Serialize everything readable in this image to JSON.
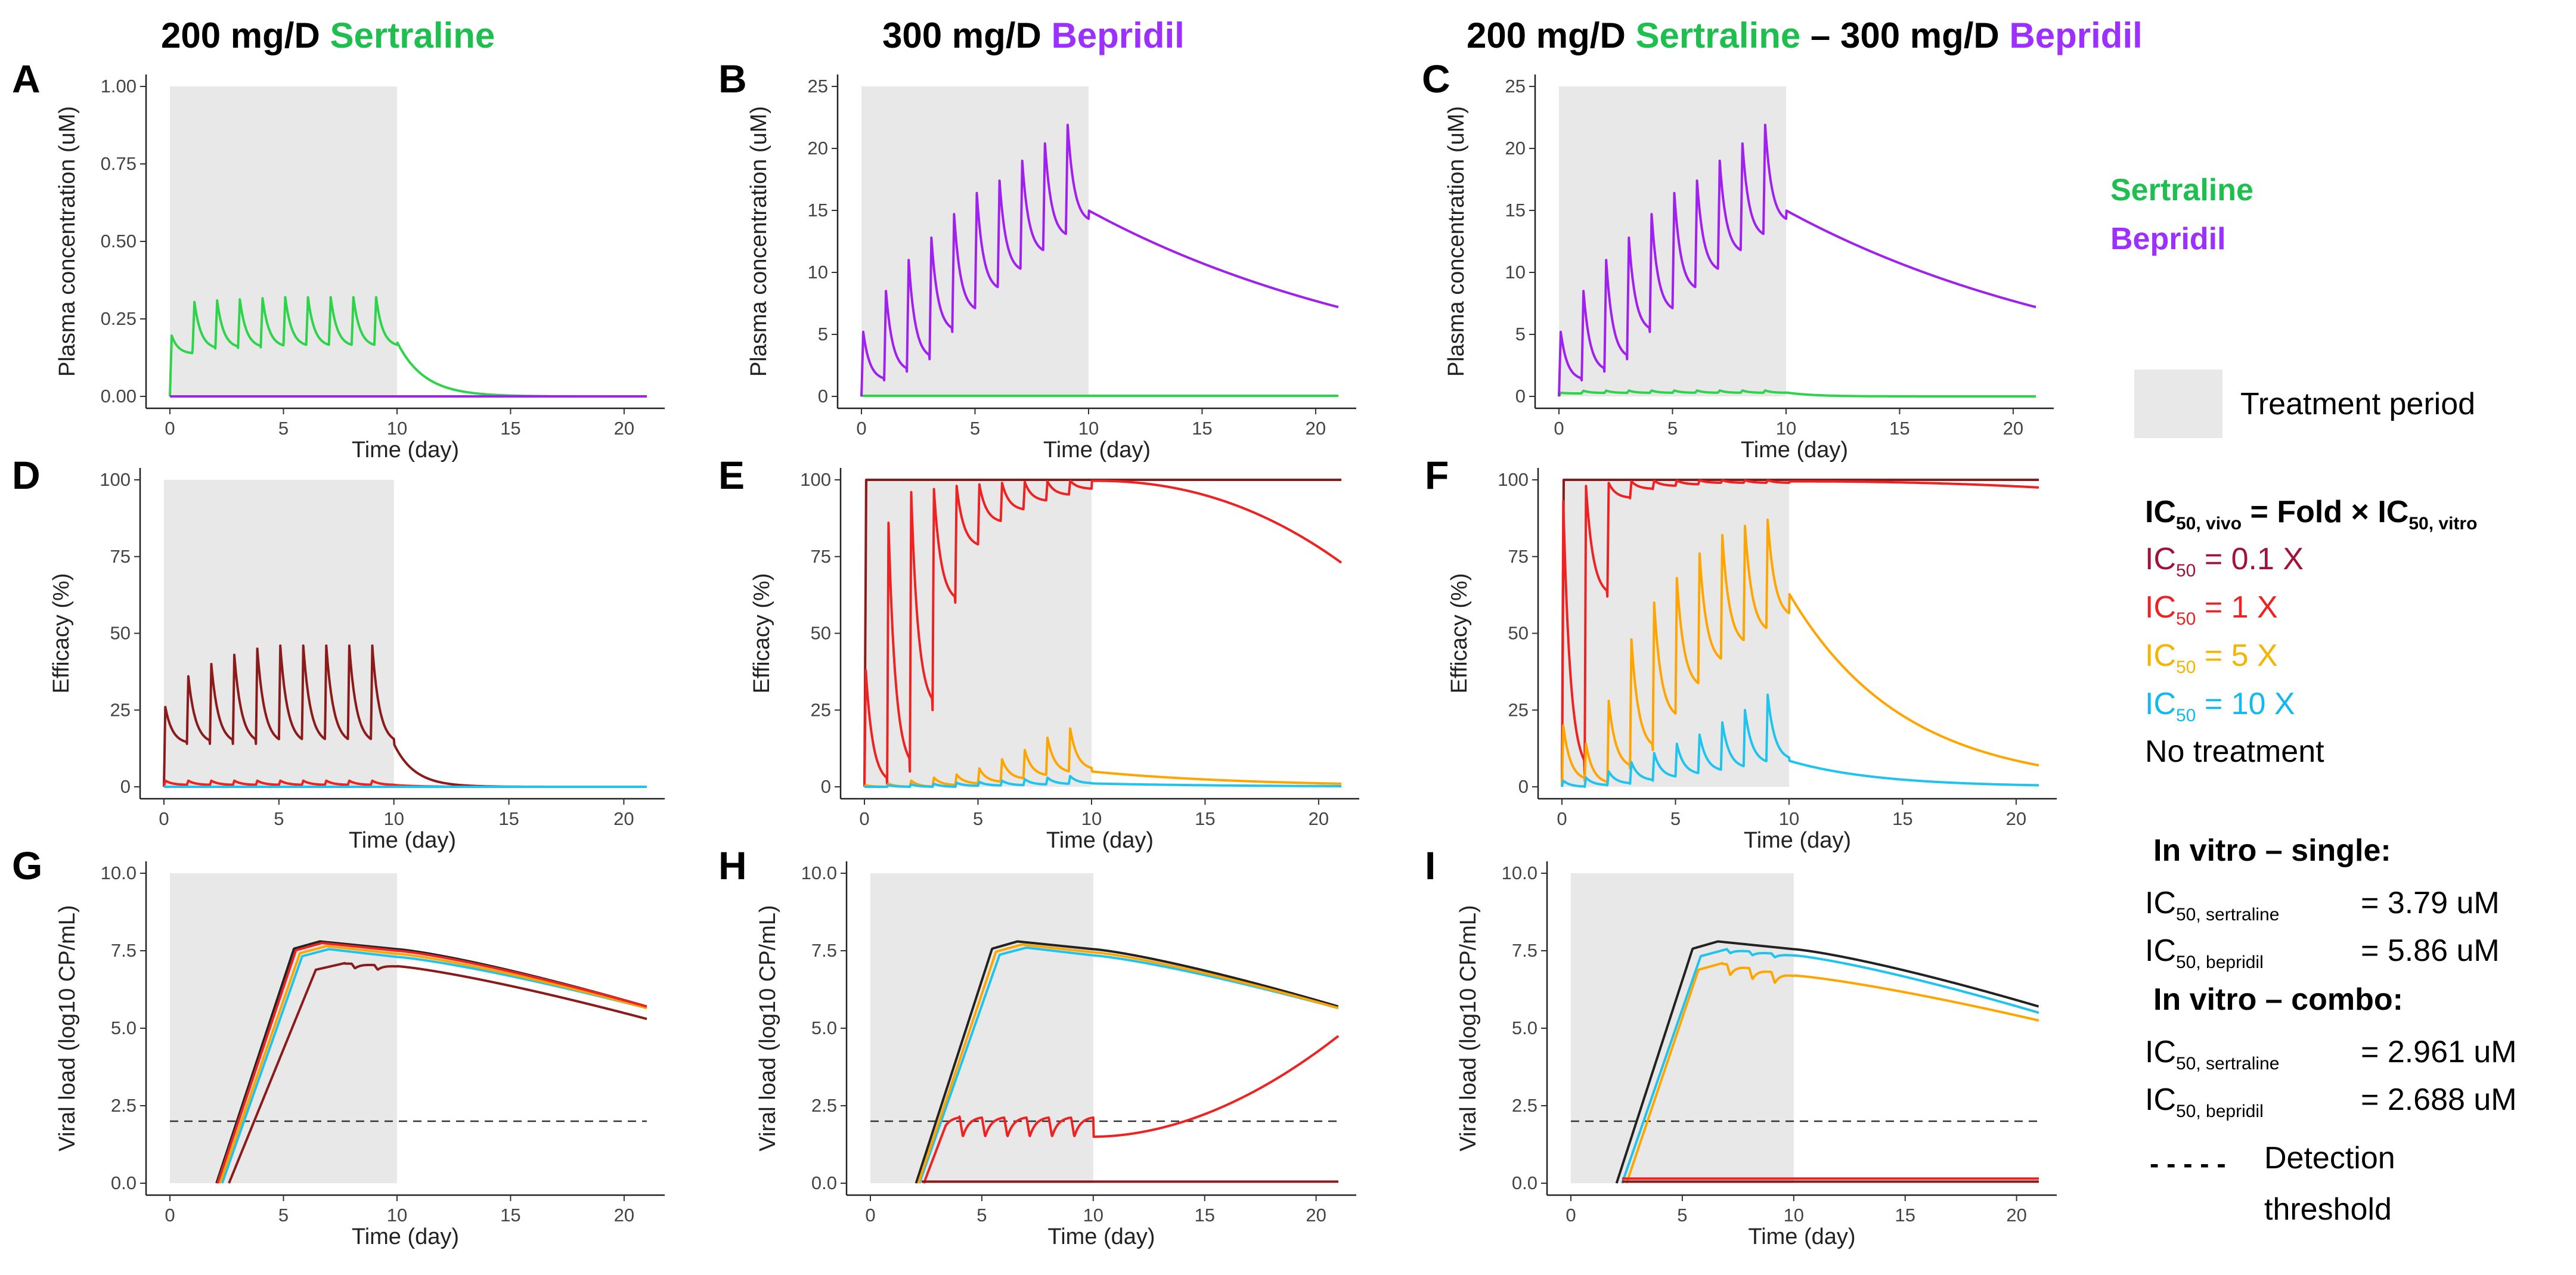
{
  "colors": {
    "sertraline": "#2dd44a",
    "sertraline_title": "#1fbf4f",
    "bepridil": "#a020f0",
    "bepridil_title": "#9b30ff",
    "ic_0_1": "#8b1a1a",
    "ic_0_1_text": "#a0123a",
    "ic_1": "#ee2222",
    "ic_5": "#ffa500",
    "ic_5_text": "#f5b400",
    "ic_10": "#1ec3ee",
    "ic_10_text": "#12b8ee",
    "no_treatment": "#222222",
    "shade": "#e8e8e8"
  },
  "columns": [
    {
      "dose1": "200 mg/D ",
      "drug1": "Sertraline",
      "sep": "",
      "dose2": "",
      "drug2": ""
    },
    {
      "dose1": "300 mg/D ",
      "drug1": "Bepridil",
      "sep": "",
      "dose2": "",
      "drug2": ""
    },
    {
      "dose1": "200 mg/D ",
      "drug1": "Sertraline",
      "sep": " – ",
      "dose2": "300 mg/D ",
      "drug2": "Bepridil"
    }
  ],
  "legend": {
    "drug_sertraline": "Sertraline",
    "drug_bepridil": "Bepridil",
    "treatment_period": "Treatment period",
    "fold_formula": {
      "ic": "IC",
      "sub_vivo": "50, vivo",
      "mid": " = Fold × IC",
      "sub_vitro": "50, vitro"
    },
    "fold_items": [
      {
        "ic": "IC",
        "sub": "50",
        "text": " = 0.1 X"
      },
      {
        "ic": "IC",
        "sub": "50",
        "text": " = 1 X"
      },
      {
        "ic": "IC",
        "sub": "50",
        "text": " = 5 X"
      },
      {
        "ic": "IC",
        "sub": "50",
        "text": " = 10 X"
      }
    ],
    "no_treatment": "No treatment",
    "single_heading": "In vitro – single:",
    "single_items": [
      {
        "ic": "IC",
        "sub": "50, sertraline",
        "value": "= 3.79 uM"
      },
      {
        "ic": "IC",
        "sub": "50, bepridil",
        "value": "= 5.86 uM"
      }
    ],
    "combo_heading": "In vitro – combo:",
    "combo_items": [
      {
        "ic": "IC",
        "sub": "50, sertraline",
        "value": "= 2.961 uM"
      },
      {
        "ic": "IC",
        "sub": "50, bepridil",
        "value": "= 2.688 uM"
      }
    ],
    "dash_glyph": "- - - - -",
    "detection_line1": "Detection",
    "detection_line2": "threshold"
  },
  "chart_data": [
    {
      "panel": "A",
      "type": "line",
      "title": "",
      "xlabel": "Time (day)",
      "ylabel": "Plasma concentration (uM)",
      "xlim": [
        0,
        21
      ],
      "ylim": [
        0,
        1.0
      ],
      "xticks": [
        0,
        5,
        10,
        15,
        20
      ],
      "xtick_labels": [
        "0",
        "5",
        "10",
        "15",
        "20"
      ],
      "yticks": [
        0,
        0.25,
        0.5,
        0.75,
        1.0
      ],
      "ytick_labels": [
        "0.00",
        "0.25",
        "0.50",
        "0.75",
        "1.00"
      ],
      "treatment_period": [
        0,
        10
      ],
      "series": [
        {
          "name": "Sertraline",
          "color_key": "sertraline",
          "model": "pk",
          "peak": 0.2,
          "trough_frac": 0.5,
          "t_half_post": 1.2,
          "growth": 0.9
        },
        {
          "name": "Bepridil",
          "color_key": "bepridil",
          "model": "const",
          "value": 0.0
        }
      ]
    },
    {
      "panel": "B",
      "type": "line",
      "title": "",
      "xlabel": "Time (day)",
      "ylabel": "Plasma concentration (uM)",
      "xlim": [
        0,
        21
      ],
      "ylim": [
        0,
        25
      ],
      "xticks": [
        0,
        5,
        10,
        15,
        20
      ],
      "xtick_labels": [
        "0",
        "5",
        "10",
        "15",
        "20"
      ],
      "yticks": [
        0,
        5,
        10,
        15,
        20,
        25
      ],
      "ytick_labels": [
        "0",
        "5",
        "10",
        "15",
        "20",
        "25"
      ],
      "treatment_period": [
        0,
        10
      ],
      "series": [
        {
          "name": "Sertraline",
          "color_key": "sertraline",
          "model": "const",
          "value": 0.05
        },
        {
          "name": "Bepridil",
          "color_key": "bepridil",
          "model": "pk",
          "peaks": [
            5.2,
            8.5,
            11.0,
            12.8,
            14.7,
            16.4,
            17.4,
            19.0,
            20.4,
            21.9
          ],
          "troughs": [
            1.3,
            2.0,
            3.0,
            5.2,
            6.8,
            8.5,
            10.0,
            11.5,
            12.8,
            14.0
          ],
          "post": {
            "start": 15.0,
            "end": 7.2
          }
        }
      ]
    },
    {
      "panel": "C",
      "type": "line",
      "title": "",
      "xlabel": "Time (day)",
      "ylabel": "Plasma concentration (uM)",
      "xlim": [
        0,
        21
      ],
      "ylim": [
        0,
        25
      ],
      "xticks": [
        0,
        5,
        10,
        15,
        20
      ],
      "xtick_labels": [
        "0",
        "5",
        "10",
        "15",
        "20"
      ],
      "yticks": [
        0,
        5,
        10,
        15,
        20,
        25
      ],
      "ytick_labels": [
        "0",
        "5",
        "10",
        "15",
        "20",
        "25"
      ],
      "treatment_period": [
        0,
        10
      ],
      "series": [
        {
          "name": "Sertraline",
          "color_key": "sertraline",
          "model": "pk",
          "peak": 0.3,
          "trough_frac": 0.6,
          "t_half_post": 1.2,
          "growth": 0.9
        },
        {
          "name": "Bepridil",
          "color_key": "bepridil",
          "model": "pk",
          "peaks": [
            5.2,
            8.5,
            11.0,
            12.8,
            14.7,
            16.4,
            17.4,
            19.0,
            20.4,
            21.9
          ],
          "troughs": [
            1.3,
            2.0,
            3.0,
            5.2,
            6.8,
            8.5,
            10.0,
            11.5,
            12.8,
            14.0
          ],
          "post": {
            "start": 15.0,
            "end": 7.2
          }
        }
      ]
    },
    {
      "panel": "D",
      "type": "line",
      "title": "",
      "xlabel": "Time (day)",
      "ylabel": "Efficacy (%)",
      "xlim": [
        0,
        21
      ],
      "ylim": [
        0,
        100
      ],
      "xticks": [
        0,
        5,
        10,
        15,
        20
      ],
      "xtick_labels": [
        "0",
        "5",
        "10",
        "15",
        "20"
      ],
      "yticks": [
        0,
        25,
        50,
        75,
        100
      ],
      "ytick_labels": [
        "0",
        "25",
        "50",
        "75",
        "100"
      ],
      "treatment_period": [
        0,
        10
      ],
      "series": [
        {
          "name": "IC50 = 0.1 X",
          "color_key": "ic_0_1",
          "model": "eff",
          "peaks": [
            26,
            36,
            40,
            43,
            45,
            46,
            46,
            46,
            46,
            46
          ],
          "trough": 14,
          "post_decay": 0.9
        },
        {
          "name": "IC50 = 1 X",
          "color_key": "ic_1",
          "model": "eff",
          "peaks": [
            2,
            2,
            2,
            2,
            2,
            2,
            2,
            2,
            2,
            2
          ],
          "trough": 0.6,
          "post_decay": 1.0
        },
        {
          "name": "IC50 = 5 X",
          "color_key": "ic_5",
          "model": "const",
          "value": 0
        },
        {
          "name": "IC50 = 10 X",
          "color_key": "ic_10",
          "model": "const",
          "value": 0
        }
      ]
    },
    {
      "panel": "E",
      "type": "line",
      "title": "",
      "xlabel": "Time (day)",
      "ylabel": "Efficacy (%)",
      "xlim": [
        0,
        21
      ],
      "ylim": [
        0,
        100
      ],
      "xticks": [
        0,
        5,
        10,
        15,
        20
      ],
      "xtick_labels": [
        "0",
        "5",
        "10",
        "15",
        "20"
      ],
      "yticks": [
        0,
        25,
        50,
        75,
        100
      ],
      "ytick_labels": [
        "0",
        "25",
        "50",
        "75",
        "100"
      ],
      "treatment_period": [
        0,
        10
      ],
      "series": [
        {
          "name": "IC50 = 0.1 X",
          "color_key": "ic_0_1",
          "model": "sat",
          "value": 100
        },
        {
          "name": "IC50 = 1 X",
          "color_key": "ic_1",
          "model": "eff",
          "peaks": [
            38,
            86,
            96,
            97,
            98,
            98.5,
            99,
            99.3,
            99.5,
            99.7
          ],
          "troughs": [
            1,
            5,
            25,
            60,
            78,
            86,
            90,
            93,
            95,
            97
          ],
          "post": {
            "start": 99.7,
            "end": 73
          }
        },
        {
          "name": "IC50 = 5 X",
          "color_key": "ic_5",
          "model": "eff",
          "peaks": [
            0.5,
            1,
            2,
            3,
            4,
            6,
            9,
            12,
            16,
            19
          ],
          "troughs": [
            0,
            0,
            0,
            0.5,
            1,
            1.5,
            2.5,
            3.5,
            4.5,
            5.5
          ],
          "post": {
            "start": 5,
            "end": 1
          }
        },
        {
          "name": "IC50 = 10 X",
          "color_key": "ic_10",
          "model": "eff",
          "peaks": [
            0,
            0.5,
            0.8,
            1,
            1.3,
            1.6,
            2,
            2.5,
            3,
            3.5
          ],
          "troughs": [
            0,
            0,
            0,
            0,
            0.3,
            0.4,
            0.5,
            0.7,
            0.9,
            1.1
          ],
          "post": {
            "start": 1.1,
            "end": 0.2
          }
        }
      ]
    },
    {
      "panel": "F",
      "type": "line",
      "title": "",
      "xlabel": "Time (day)",
      "ylabel": "Efficacy (%)",
      "xlim": [
        0,
        21
      ],
      "ylim": [
        0,
        100
      ],
      "xticks": [
        0,
        5,
        10,
        15,
        20
      ],
      "xtick_labels": [
        "0",
        "5",
        "10",
        "15",
        "20"
      ],
      "yticks": [
        0,
        25,
        50,
        75,
        100
      ],
      "ytick_labels": [
        "0",
        "25",
        "50",
        "75",
        "100"
      ],
      "treatment_period": [
        0,
        10
      ],
      "series": [
        {
          "name": "IC50 = 0.1 X",
          "color_key": "ic_0_1",
          "model": "sat",
          "value": 100
        },
        {
          "name": "IC50 = 1 X",
          "color_key": "ic_1",
          "model": "eff",
          "peaks": [
            93,
            98,
            99,
            99.5,
            99.7,
            99.8,
            99.9,
            99.9,
            99.9,
            99.9
          ],
          "troughs": [
            4,
            62,
            94,
            97,
            98,
            98.5,
            99,
            99,
            99,
            99
          ],
          "post": {
            "start": 99.5,
            "end": 97.5
          }
        },
        {
          "name": "IC50 = 5 X",
          "color_key": "ic_5",
          "model": "eff",
          "peaks": [
            20,
            14,
            28,
            48,
            60,
            68,
            76,
            82,
            85,
            87
          ],
          "troughs": [
            2,
            1,
            6,
            12,
            22,
            32,
            40,
            46,
            50,
            55
          ],
          "post": {
            "start": 63,
            "end": 7
          }
        },
        {
          "name": "IC50 = 10 X",
          "color_key": "ic_10",
          "model": "eff",
          "peaks": [
            2,
            3,
            5,
            8,
            11,
            14,
            17,
            21,
            25,
            30
          ],
          "troughs": [
            0,
            0.5,
            1,
            2,
            3,
            4,
            5,
            6,
            7.5,
            8.5
          ],
          "post": {
            "start": 8.5,
            "end": 0.5
          }
        }
      ]
    },
    {
      "panel": "G",
      "type": "line",
      "title": "",
      "xlabel": "Time (day)",
      "ylabel": "Viral load (log10 CP/mL)",
      "xlim": [
        0,
        21
      ],
      "ylim": [
        0,
        10
      ],
      "xticks": [
        0,
        5,
        10,
        15,
        20
      ],
      "xtick_labels": [
        "0",
        "5",
        "10",
        "15",
        "20"
      ],
      "yticks": [
        0,
        2.5,
        5,
        7.5,
        10
      ],
      "ytick_labels": [
        "0.0",
        "2.5",
        "5.0",
        "7.5",
        "10.0"
      ],
      "treatment_period": [
        0,
        10
      ],
      "threshold": 2,
      "series": [
        {
          "name": "No treatment",
          "color_key": "no_treatment",
          "model": "viral",
          "t0": 2.05,
          "tp": 6.6,
          "peak": 7.8,
          "end": 5.7
        },
        {
          "name": "IC50 = 10 X",
          "color_key": "ic_10",
          "model": "viral",
          "t0": 2.3,
          "tp": 7.0,
          "peak": 7.55,
          "end": 5.65
        },
        {
          "name": "IC50 = 5 X",
          "color_key": "ic_5",
          "model": "viral",
          "t0": 2.2,
          "tp": 6.9,
          "peak": 7.65,
          "end": 5.65
        },
        {
          "name": "IC50 = 1 X",
          "color_key": "ic_1",
          "model": "viral",
          "t0": 2.1,
          "tp": 6.7,
          "peak": 7.75,
          "end": 5.7
        },
        {
          "name": "IC50 = 0.1 X",
          "color_key": "ic_0_1",
          "model": "viral_ripple",
          "t0": 2.6,
          "tp": 7.7,
          "peak": 7.1,
          "mid": 7.0,
          "end": 5.3,
          "ripple": 0.15
        }
      ]
    },
    {
      "panel": "H",
      "type": "line",
      "title": "",
      "xlabel": "Time (day)",
      "ylabel": "Viral load (log10 CP/mL)",
      "xlim": [
        0,
        21
      ],
      "ylim": [
        0,
        10
      ],
      "xticks": [
        0,
        5,
        10,
        15,
        20
      ],
      "xtick_labels": [
        "0",
        "5",
        "10",
        "15",
        "20"
      ],
      "yticks": [
        0,
        2.5,
        5,
        7.5,
        10
      ],
      "ytick_labels": [
        "0.0",
        "2.5",
        "5.0",
        "7.5",
        "10.0"
      ],
      "treatment_period": [
        0,
        10
      ],
      "threshold": 2,
      "series": [
        {
          "name": "No treatment",
          "color_key": "no_treatment",
          "model": "viral",
          "t0": 2.05,
          "tp": 6.6,
          "peak": 7.8,
          "end": 5.7
        },
        {
          "name": "IC50 = 10 X",
          "color_key": "ic_10",
          "model": "viral",
          "t0": 2.2,
          "tp": 7.0,
          "peak": 7.6,
          "end": 5.65
        },
        {
          "name": "IC50 = 5 X",
          "color_key": "ic_5",
          "model": "viral",
          "t0": 2.15,
          "tp": 6.8,
          "peak": 7.7,
          "end": 5.65
        },
        {
          "name": "IC50 = 1 X",
          "color_key": "ic_1",
          "model": "viral_suppressed",
          "t0": 2.4,
          "level": 1.9,
          "dip": 1.5,
          "start_rebound": 10.5,
          "end": 4.75
        },
        {
          "name": "IC50 = 0.1 X",
          "color_key": "ic_0_1",
          "model": "flat_from",
          "t0": 2.3,
          "value": 0.05
        }
      ]
    },
    {
      "panel": "I",
      "type": "line",
      "title": "",
      "xlabel": "Time (day)",
      "ylabel": "Viral load (log10 CP/mL)",
      "xlim": [
        0,
        21
      ],
      "ylim": [
        0,
        10
      ],
      "xticks": [
        0,
        5,
        10,
        15,
        20
      ],
      "xtick_labels": [
        "0",
        "5",
        "10",
        "15",
        "20"
      ],
      "yticks": [
        0,
        2.5,
        5,
        7.5,
        10
      ],
      "ytick_labels": [
        "0.0",
        "2.5",
        "5.0",
        "7.5",
        "10.0"
      ],
      "treatment_period": [
        0,
        10
      ],
      "threshold": 2,
      "series": [
        {
          "name": "No treatment",
          "color_key": "no_treatment",
          "model": "viral",
          "t0": 2.05,
          "tp": 6.6,
          "peak": 7.8,
          "end": 5.7
        },
        {
          "name": "IC50 = 10 X",
          "color_key": "ic_10",
          "model": "viral_ripple",
          "t0": 2.3,
          "tp": 7.0,
          "peak": 7.55,
          "mid": 7.35,
          "end": 5.5,
          "ripple": 0.12
        },
        {
          "name": "IC50 = 5 X",
          "color_key": "ic_5",
          "model": "viral_ripple",
          "t0": 2.5,
          "tp": 6.8,
          "peak": 7.1,
          "mid": 6.7,
          "end": 5.25,
          "ripple": 0.35
        },
        {
          "name": "IC50 = 1 X",
          "color_key": "ic_1",
          "model": "flat_from",
          "t0": 2.3,
          "value": 0.15
        },
        {
          "name": "IC50 = 0.1 X",
          "color_key": "ic_0_1",
          "model": "flat_from",
          "t0": 2.3,
          "value": 0.05
        }
      ]
    }
  ]
}
